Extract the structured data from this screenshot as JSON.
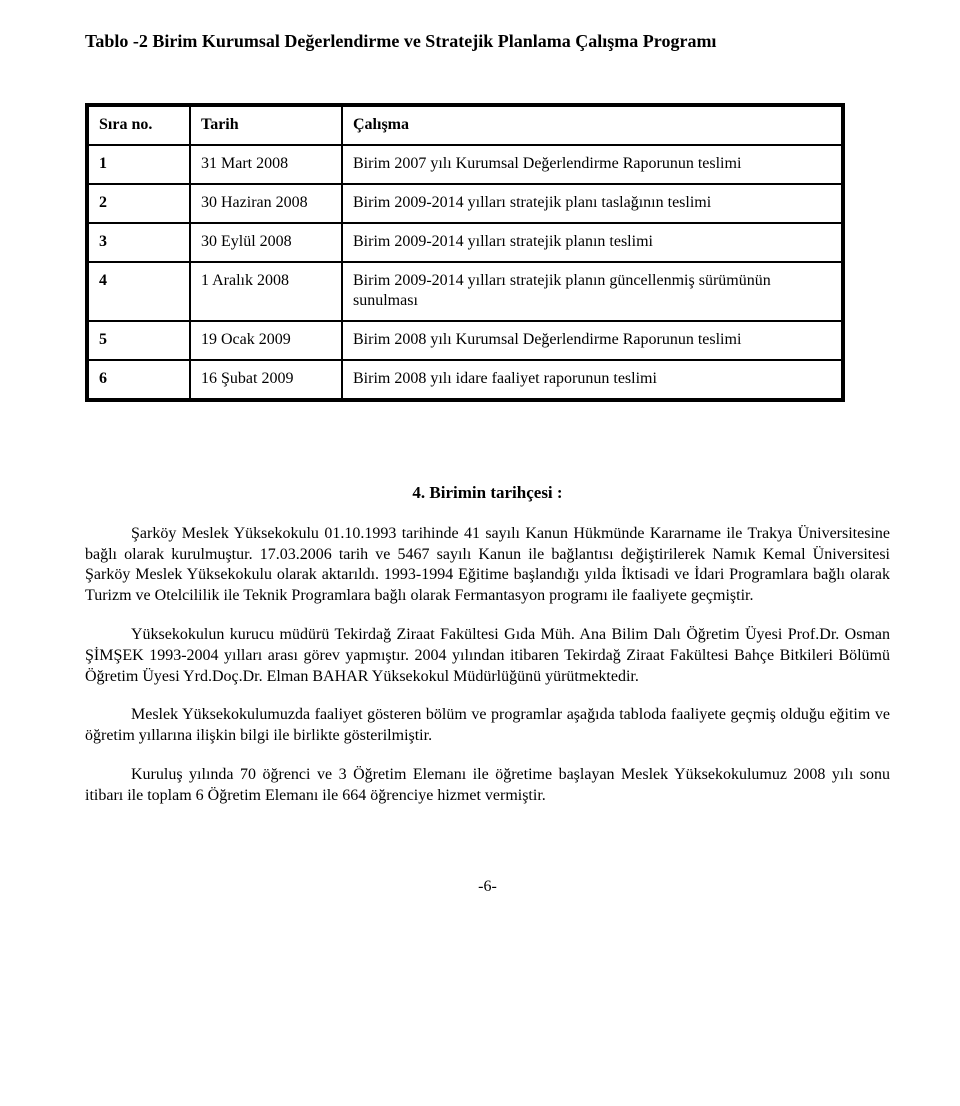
{
  "title": "Tablo -2 Birim Kurumsal Değerlendirme ve Stratejik Planlama Çalışma Programı",
  "table": {
    "headers": {
      "no": "Sıra no.",
      "date": "Tarih",
      "task": "Çalışma"
    },
    "rows": [
      {
        "no": "1",
        "date": "31 Mart 2008",
        "task": "Birim 2007 yılı Kurumsal Değerlendirme Raporunun teslimi"
      },
      {
        "no": "2",
        "date": "30 Haziran 2008",
        "task": "Birim 2009-2014 yılları stratejik planı taslağının teslimi"
      },
      {
        "no": "3",
        "date": "30 Eylül 2008",
        "task": "Birim 2009-2014 yılları stratejik planın teslimi"
      },
      {
        "no": "4",
        "date": "1 Aralık 2008",
        "task": "Birim 2009-2014 yılları stratejik planın güncellenmiş sürümünün sunulması"
      },
      {
        "no": "5",
        "date": "19 Ocak 2009",
        "task": "Birim 2008 yılı Kurumsal Değerlendirme Raporunun teslimi"
      },
      {
        "no": "6",
        "date": "16 Şubat 2009",
        "task": "Birim 2008 yılı idare faaliyet raporunun teslimi"
      }
    ]
  },
  "section_heading": "4. Birimin tarihçesi :",
  "paragraphs": {
    "p1": "Şarköy Meslek Yüksekokulu 01.10.1993 tarihinde 41 sayılı Kanun Hükmünde Kararname ile Trakya Üniversitesine bağlı olarak kurulmuştur. 17.03.2006 tarih ve 5467 sayılı Kanun ile bağlantısı değiştirilerek Namık Kemal Üniversitesi Şarköy Meslek Yüksekokulu olarak aktarıldı. 1993-1994 Eğitime başlandığı yılda İktisadi ve İdari Programlara bağlı olarak Turizm ve Otelcililik ile Teknik Programlara bağlı olarak Fermantasyon programı ile faaliyete geçmiştir.",
    "p2": "Yüksekokulun kurucu müdürü  Tekirdağ  Ziraat Fakültesi Gıda Müh. Ana Bilim Dalı Öğretim Üyesi Prof.Dr. Osman ŞİMŞEK 1993-2004 yılları arası görev yapmıştır. 2004 yılından itibaren Tekirdağ Ziraat Fakültesi Bahçe Bitkileri Bölümü Öğretim Üyesi Yrd.Doç.Dr. Elman BAHAR Yüksekokul Müdürlüğünü yürütmektedir.",
    "p3": "Meslek Yüksekokulumuzda faaliyet gösteren bölüm ve programlar aşağıda tabloda faaliyete geçmiş olduğu eğitim ve öğretim yıllarına ilişkin bilgi ile birlikte gösterilmiştir.",
    "p4": "Kuruluş yılında 70 öğrenci ve 3 Öğretim Elemanı ile öğretime başlayan Meslek Yüksekokulumuz 2008 yılı sonu itibarı ile toplam 6 Öğretim Elemanı ile  664 öğrenciye hizmet vermiştir."
  },
  "page_number": "-6-"
}
